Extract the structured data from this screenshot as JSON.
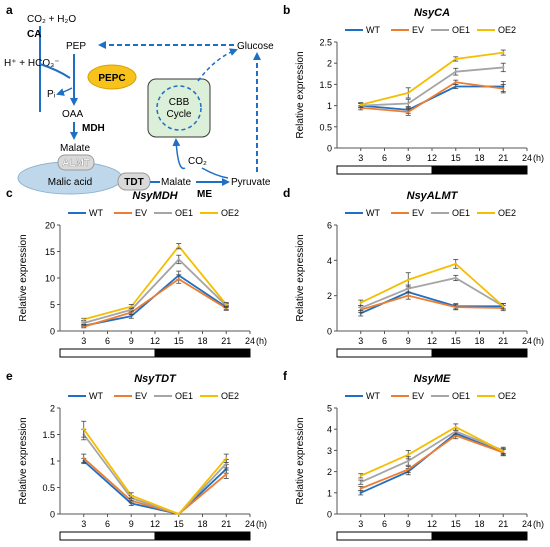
{
  "panel_a": {
    "letter": "a",
    "co2_h2o": "CO₂ + H₂O",
    "ca": "CA",
    "pep": "PEP",
    "hco3": "H⁺ + HCO₃⁻",
    "pepc": "PEPC",
    "pi": "Pᵢ",
    "oaa": "OAA",
    "mdh": "MDH",
    "malate": "Malate",
    "almt": "ALMT",
    "malic_acid": "Malic acid",
    "tdt": "TDT",
    "malate2": "Malate",
    "me": "ME",
    "pyruvate": "Pyruvate",
    "glucose": "Glucose",
    "cbb1": "CBB",
    "cbb2": "Cycle",
    "co2": "CO₂",
    "colors": {
      "arrow": "#1f6fc4",
      "pepc_fill": "#f6c21b",
      "cbb_fill": "#dcefd8",
      "almt_fill": "#bfd7ea",
      "box_fill": "#d9d9d9"
    }
  },
  "colors": {
    "WT": "#1f6fc4",
    "EV": "#ed7d31",
    "OE1": "#a5a5a5",
    "OE2": "#f5be00"
  },
  "chart_data": [
    {
      "panel": "b",
      "type": "line",
      "title": "NsyCA",
      "ylabel": "Relative expression",
      "xunit": "(h)",
      "x": [
        3,
        9,
        15,
        21
      ],
      "xticks": [
        3,
        6,
        9,
        12,
        15,
        18,
        21,
        24
      ],
      "xlim": [
        0,
        24
      ],
      "ylim": [
        0,
        2.5
      ],
      "yticks": [
        "0",
        "0.5",
        "1",
        "1.5",
        "2",
        "2.5"
      ],
      "series": [
        {
          "name": "WT",
          "values": [
            1.0,
            0.9,
            1.45,
            1.45
          ],
          "err": [
            0.05,
            0.08,
            0.05,
            0.12
          ]
        },
        {
          "name": "EV",
          "values": [
            0.95,
            0.85,
            1.55,
            1.4
          ],
          "err": [
            0.05,
            0.08,
            0.05,
            0.1
          ]
        },
        {
          "name": "OE1",
          "values": [
            1.0,
            1.05,
            1.8,
            1.9
          ],
          "err": [
            0.05,
            0.1,
            0.08,
            0.1
          ]
        },
        {
          "name": "OE2",
          "values": [
            1.02,
            1.3,
            2.1,
            2.25
          ],
          "err": [
            0.05,
            0.12,
            0.05,
            0.06
          ]
        }
      ]
    },
    {
      "panel": "c",
      "type": "line",
      "title": "NsyMDH",
      "ylabel": "Relative expression",
      "xunit": "(h)",
      "x": [
        3,
        9,
        15,
        21
      ],
      "xticks": [
        3,
        6,
        9,
        12,
        15,
        18,
        21,
        24
      ],
      "xlim": [
        0,
        24
      ],
      "ylim": [
        0,
        20
      ],
      "yticks": [
        "0",
        "5",
        "10",
        "15",
        "20"
      ],
      "series": [
        {
          "name": "WT",
          "values": [
            1.0,
            2.8,
            10.5,
            4.5
          ],
          "err": [
            0.2,
            0.4,
            0.8,
            0.4
          ]
        },
        {
          "name": "EV",
          "values": [
            0.8,
            3.5,
            9.8,
            4.3
          ],
          "err": [
            0.2,
            0.4,
            0.8,
            0.4
          ]
        },
        {
          "name": "OE1",
          "values": [
            1.5,
            4.0,
            13.5,
            4.8
          ],
          "err": [
            0.2,
            0.4,
            0.8,
            0.4
          ]
        },
        {
          "name": "OE2",
          "values": [
            2.2,
            4.6,
            16.0,
            5.0
          ],
          "err": [
            0.2,
            0.4,
            0.5,
            0.4
          ]
        }
      ]
    },
    {
      "panel": "d",
      "type": "line",
      "title": "NsyALMT",
      "ylabel": "Relative expression",
      "xunit": "(h)",
      "x": [
        3,
        9,
        15,
        21
      ],
      "xticks": [
        3,
        6,
        9,
        12,
        15,
        18,
        21,
        24
      ],
      "xlim": [
        0,
        24
      ],
      "ylim": [
        0,
        6
      ],
      "yticks": [
        "0",
        "2",
        "4",
        "6"
      ],
      "series": [
        {
          "name": "WT",
          "values": [
            1.0,
            2.2,
            1.4,
            1.4
          ],
          "err": [
            0.15,
            0.2,
            0.15,
            0.15
          ]
        },
        {
          "name": "EV",
          "values": [
            1.2,
            2.0,
            1.35,
            1.3
          ],
          "err": [
            0.15,
            0.2,
            0.15,
            0.15
          ]
        },
        {
          "name": "OE1",
          "values": [
            1.3,
            2.4,
            3.0,
            1.4
          ],
          "err": [
            0.15,
            0.2,
            0.15,
            0.15
          ]
        },
        {
          "name": "OE2",
          "values": [
            1.6,
            2.9,
            3.8,
            1.4
          ],
          "err": [
            0.15,
            0.4,
            0.25,
            0.15
          ]
        }
      ]
    },
    {
      "panel": "e",
      "type": "line",
      "title": "NsyTDT",
      "ylabel": "Relative expression",
      "xunit": "(h)",
      "x": [
        3,
        9,
        15,
        21
      ],
      "xticks": [
        3,
        6,
        9,
        12,
        15,
        18,
        21,
        24
      ],
      "xlim": [
        0,
        24
      ],
      "ylim": [
        0,
        2
      ],
      "yticks": [
        "0",
        "0.5",
        "1",
        "1.5",
        "2"
      ],
      "series": [
        {
          "name": "WT",
          "values": [
            1.0,
            0.2,
            0.0,
            0.85
          ],
          "err": [
            0.05,
            0.04,
            0.0,
            0.08
          ]
        },
        {
          "name": "EV",
          "values": [
            1.05,
            0.25,
            0.0,
            0.75
          ],
          "err": [
            0.08,
            0.04,
            0.0,
            0.08
          ]
        },
        {
          "name": "OE1",
          "values": [
            1.5,
            0.3,
            0.0,
            0.95
          ],
          "err": [
            0.1,
            0.05,
            0.0,
            0.08
          ]
        },
        {
          "name": "OE2",
          "values": [
            1.6,
            0.35,
            0.0,
            1.05
          ],
          "err": [
            0.15,
            0.05,
            0.0,
            0.08
          ]
        }
      ]
    },
    {
      "panel": "f",
      "type": "line",
      "title": "NsyME",
      "ylabel": "Relative expression",
      "xunit": "(h)",
      "x": [
        3,
        9,
        15,
        21
      ],
      "xticks": [
        3,
        6,
        9,
        12,
        15,
        18,
        21,
        24
      ],
      "xlim": [
        0,
        24
      ],
      "ylim": [
        0,
        5
      ],
      "yticks": [
        "0",
        "1",
        "2",
        "3",
        "4",
        "5"
      ],
      "series": [
        {
          "name": "WT",
          "values": [
            1.0,
            2.0,
            3.8,
            2.9
          ],
          "err": [
            0.1,
            0.15,
            0.15,
            0.15
          ]
        },
        {
          "name": "EV",
          "values": [
            1.2,
            2.1,
            3.7,
            2.9
          ],
          "err": [
            0.1,
            0.15,
            0.15,
            0.15
          ]
        },
        {
          "name": "OE1",
          "values": [
            1.5,
            2.5,
            3.9,
            3.0
          ],
          "err": [
            0.1,
            0.2,
            0.15,
            0.15
          ]
        },
        {
          "name": "OE2",
          "values": [
            1.8,
            2.8,
            4.1,
            2.95
          ],
          "err": [
            0.1,
            0.2,
            0.15,
            0.15
          ]
        }
      ]
    }
  ]
}
